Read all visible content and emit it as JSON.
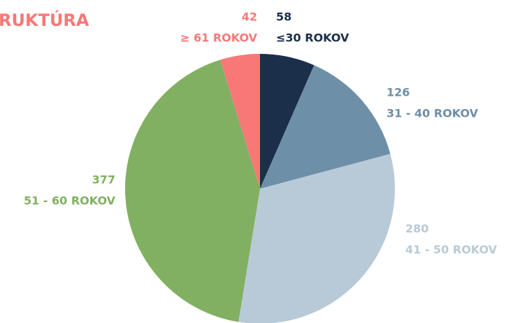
{
  "chart_data": {
    "type": "pie",
    "title": "RUKTÚRA",
    "categories": [
      "≤30 ROKOV",
      "31 - 40 ROKOV",
      "41 - 50 ROKOV",
      "51 - 60 ROKOV",
      "≥ 61 ROKOV"
    ],
    "values": [
      58,
      126,
      280,
      377,
      42
    ],
    "colors": [
      "#1b2f4a",
      "#6e8fa8",
      "#b8cad8",
      "#82b062",
      "#f87878"
    ]
  }
}
